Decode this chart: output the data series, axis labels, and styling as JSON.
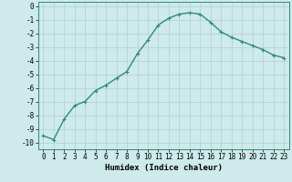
{
  "x": [
    0,
    1,
    2,
    3,
    4,
    5,
    6,
    7,
    8,
    9,
    10,
    11,
    12,
    13,
    14,
    15,
    16,
    17,
    18,
    19,
    20,
    21,
    22,
    23
  ],
  "y": [
    -9.5,
    -9.8,
    -8.3,
    -7.3,
    -7.0,
    -6.2,
    -5.8,
    -5.3,
    -4.8,
    -3.5,
    -2.5,
    -1.4,
    -0.9,
    -0.6,
    -0.5,
    -0.6,
    -1.2,
    -1.9,
    -2.3,
    -2.6,
    -2.9,
    -3.2,
    -3.6,
    -3.8
  ],
  "line_color": "#2e8b7a",
  "marker": "+",
  "marker_size": 3,
  "linewidth": 1.0,
  "bg_color": "#ceeaea",
  "grid_color": "#b0d0d0",
  "xlabel": "Humidex (Indice chaleur)",
  "xlabel_fontsize": 6.5,
  "ylabel_ticks": [
    0,
    -1,
    -2,
    -3,
    -4,
    -5,
    -6,
    -7,
    -8,
    -9,
    -10
  ],
  "xtick_labels": [
    "0",
    "1",
    "2",
    "3",
    "4",
    "5",
    "6",
    "7",
    "8",
    "9",
    "10",
    "11",
    "12",
    "13",
    "14",
    "15",
    "16",
    "17",
    "18",
    "19",
    "20",
    "21",
    "22",
    "23"
  ],
  "ylim": [
    -10.5,
    0.3
  ],
  "xlim": [
    -0.5,
    23.5
  ],
  "tick_fontsize": 5.5
}
